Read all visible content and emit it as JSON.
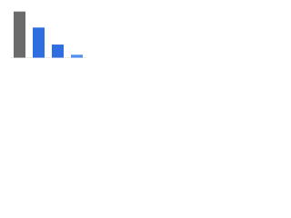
{
  "chart_data": {
    "type": "bar",
    "categories": [
      null,
      null,
      null,
      null
    ],
    "values": [
      95,
      62,
      27,
      6
    ],
    "colors": [
      "#6b6b6b",
      "#2f6ee0",
      "#2f6ee0",
      "#4f8ff0"
    ],
    "ylim": [
      0,
      100
    ]
  }
}
